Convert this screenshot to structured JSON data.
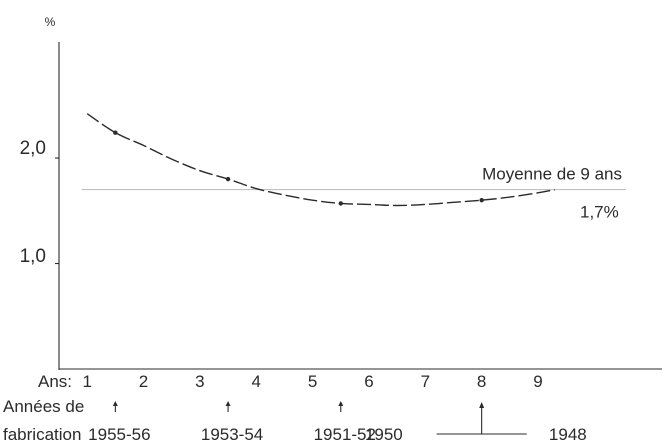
{
  "chart_data": {
    "type": "line",
    "ylabel": "%",
    "ylim": [
      0,
      3.1
    ],
    "xlim": [
      0.5,
      11.2
    ],
    "y_tick_labels": [
      "2,0",
      "1,0"
    ],
    "y_ticks": [
      2.0,
      1.0
    ],
    "x_axis_prefix": "Ans:",
    "x_tick_labels": [
      "1",
      "2",
      "3",
      "4",
      "5",
      "6",
      "7",
      "8",
      "9"
    ],
    "x_ticks": [
      1,
      2,
      3,
      4,
      5,
      6,
      7,
      8,
      9
    ],
    "series": [
      {
        "x": [
          1.0,
          1.5,
          2.0,
          2.5,
          3.0,
          3.5,
          4.0,
          4.5,
          5.0,
          5.5,
          6.0,
          6.5,
          7.0,
          7.5,
          8.0,
          8.5,
          9.0,
          9.3
        ],
        "y": [
          2.42,
          2.24,
          2.12,
          1.99,
          1.88,
          1.8,
          1.71,
          1.65,
          1.6,
          1.57,
          1.56,
          1.55,
          1.56,
          1.58,
          1.6,
          1.63,
          1.67,
          1.7
        ],
        "markers": [
          {
            "x": 1.5,
            "y": 2.24
          },
          {
            "x": 3.5,
            "y": 1.8
          },
          {
            "x": 5.5,
            "y": 1.57
          },
          {
            "x": 8.0,
            "y": 1.6
          }
        ]
      }
    ],
    "average": {
      "value": 1.7,
      "label": "Moyenne de 9 ans",
      "value_label": "1,7%"
    },
    "row2_label": "Années de",
    "row3_label": "fabrication",
    "fabrication_years": [
      {
        "label": "1955-56",
        "at": 1.5
      },
      {
        "label": "1953-54",
        "at": 3.5
      },
      {
        "label": "1951-52",
        "at": 5.5
      },
      {
        "label": "1950",
        "at": 6.6
      },
      {
        "label": "1948",
        "at": 9.3
      }
    ],
    "bracket": {
      "from": 7.2,
      "to": 8.8,
      "at": 8.0
    }
  }
}
